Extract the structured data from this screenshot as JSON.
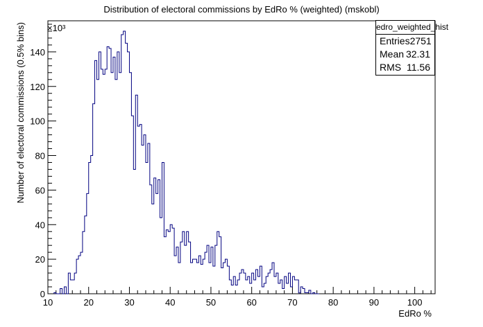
{
  "chart_data": {
    "type": "histogram",
    "title": "Distribution of electoral commissions by EdRo % (weighted) (mskobl)",
    "xlabel": "EdRo %",
    "ylabel": "Number of electoral commissions (0.5% bins)",
    "y_multiplier": "×10³",
    "xlim": [
      10,
      105
    ],
    "ylim": [
      0,
      158
    ],
    "bin_width": 0.5,
    "x_ticks": [
      "10",
      "20",
      "30",
      "40",
      "50",
      "60",
      "70",
      "80",
      "90",
      "100"
    ],
    "y_ticks": [
      "0",
      "20",
      "40",
      "60",
      "80",
      "100",
      "120",
      "140"
    ],
    "grid": false,
    "legend": "top-right",
    "color": "#000080",
    "bins": [
      [
        11.5,
        0.6
      ],
      [
        12.0,
        0
      ],
      [
        12.5,
        0
      ],
      [
        13.0,
        3
      ],
      [
        13.5,
        0
      ],
      [
        14.0,
        4
      ],
      [
        14.5,
        0
      ],
      [
        15.0,
        12
      ],
      [
        15.5,
        8
      ],
      [
        16.0,
        8
      ],
      [
        16.5,
        12
      ],
      [
        17.0,
        20
      ],
      [
        17.5,
        22
      ],
      [
        18.0,
        24
      ],
      [
        18.5,
        36
      ],
      [
        19.0,
        45
      ],
      [
        19.5,
        58
      ],
      [
        20.0,
        76
      ],
      [
        20.5,
        80
      ],
      [
        21.0,
        110
      ],
      [
        21.5,
        135
      ],
      [
        22.0,
        124
      ],
      [
        22.5,
        140
      ],
      [
        23.0,
        130
      ],
      [
        23.5,
        127
      ],
      [
        24.0,
        130
      ],
      [
        24.5,
        143
      ],
      [
        25.0,
        142
      ],
      [
        25.5,
        128
      ],
      [
        26.0,
        137
      ],
      [
        26.5,
        124
      ],
      [
        27.0,
        140
      ],
      [
        27.5,
        128
      ],
      [
        28.0,
        150
      ],
      [
        28.5,
        152
      ],
      [
        29.0,
        145
      ],
      [
        29.5,
        140
      ],
      [
        30.0,
        128
      ],
      [
        30.5,
        103
      ],
      [
        31.0,
        72
      ],
      [
        31.5,
        115
      ],
      [
        32.0,
        97
      ],
      [
        32.5,
        98
      ],
      [
        33.0,
        86
      ],
      [
        33.5,
        92
      ],
      [
        34.0,
        76
      ],
      [
        34.5,
        87
      ],
      [
        35.0,
        63
      ],
      [
        35.5,
        52
      ],
      [
        36.0,
        67
      ],
      [
        36.5,
        58
      ],
      [
        37.0,
        66
      ],
      [
        37.5,
        44
      ],
      [
        38.0,
        76
      ],
      [
        38.5,
        33
      ],
      [
        39.0,
        37
      ],
      [
        39.5,
        36
      ],
      [
        40.0,
        40
      ],
      [
        40.5,
        38
      ],
      [
        41.0,
        22
      ],
      [
        41.5,
        27
      ],
      [
        42.0,
        18
      ],
      [
        42.5,
        30
      ],
      [
        43.0,
        36
      ],
      [
        43.5,
        28
      ],
      [
        44.0,
        36
      ],
      [
        44.5,
        30
      ],
      [
        45.0,
        18
      ],
      [
        45.5,
        20
      ],
      [
        46.0,
        20
      ],
      [
        46.5,
        18
      ],
      [
        47.0,
        22
      ],
      [
        47.5,
        17
      ],
      [
        48.0,
        20
      ],
      [
        48.5,
        24
      ],
      [
        49.0,
        28
      ],
      [
        49.5,
        18
      ],
      [
        50.0,
        27
      ],
      [
        50.5,
        16
      ],
      [
        51.0,
        28
      ],
      [
        51.5,
        36
      ],
      [
        52.0,
        33
      ],
      [
        52.5,
        15
      ],
      [
        53.0,
        18
      ],
      [
        53.5,
        20
      ],
      [
        54.0,
        16
      ],
      [
        54.5,
        8
      ],
      [
        55.0,
        5
      ],
      [
        55.5,
        10
      ],
      [
        56.0,
        5
      ],
      [
        56.5,
        8
      ],
      [
        57.0,
        12
      ],
      [
        57.5,
        14
      ],
      [
        58.0,
        12
      ],
      [
        58.5,
        8
      ],
      [
        59.0,
        10
      ],
      [
        59.5,
        6
      ],
      [
        60.0,
        12
      ],
      [
        60.5,
        8
      ],
      [
        61.0,
        14
      ],
      [
        61.5,
        10
      ],
      [
        62.0,
        16
      ],
      [
        62.5,
        4
      ],
      [
        63.0,
        6
      ],
      [
        63.5,
        10
      ],
      [
        64.0,
        12
      ],
      [
        64.5,
        14
      ],
      [
        65.0,
        18
      ],
      [
        65.5,
        10
      ],
      [
        66.0,
        12
      ],
      [
        66.5,
        6
      ],
      [
        67.0,
        8
      ],
      [
        67.5,
        3
      ],
      [
        68.0,
        10
      ],
      [
        68.5,
        6
      ],
      [
        69.0,
        12
      ],
      [
        69.5,
        4
      ],
      [
        70.0,
        10
      ],
      [
        70.5,
        8
      ],
      [
        71.0,
        8
      ],
      [
        71.5,
        0.5
      ],
      [
        72.0,
        4
      ],
      [
        72.5,
        3
      ],
      [
        73.0,
        0.6
      ],
      [
        73.5,
        0.6
      ],
      [
        74.0,
        2
      ],
      [
        74.5,
        0
      ],
      [
        75.0,
        0.6
      ],
      [
        75.5,
        0
      ],
      [
        76.0,
        0
      ]
    ],
    "stats": {
      "name": "edro_weighted_hist",
      "entries_label": "Entries",
      "entries": "2751",
      "mean_label": "Mean",
      "mean": "32.31",
      "rms_label": "RMS",
      "rms": "11.56"
    }
  }
}
